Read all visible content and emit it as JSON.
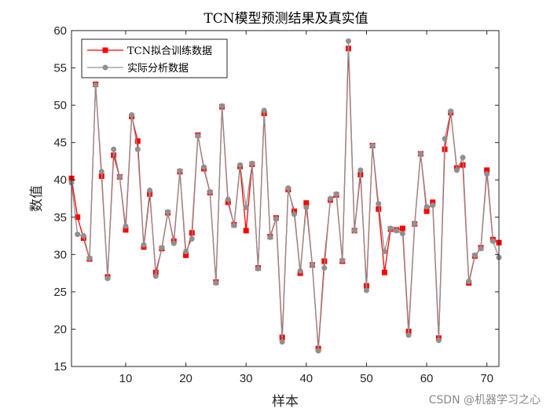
{
  "watermark": "CSDN @机器学习之心",
  "chart_data": {
    "type": "line",
    "title": "TCN模型预测结果及真实值",
    "xlabel": "样本",
    "ylabel": "数值",
    "xlim": [
      1,
      72
    ],
    "ylim": [
      15,
      60
    ],
    "xticks": [
      10,
      20,
      30,
      40,
      50,
      60,
      70
    ],
    "yticks": [
      15,
      20,
      25,
      30,
      35,
      40,
      45,
      50,
      55,
      60
    ],
    "grid": false,
    "legend_position": "top-left",
    "x": [
      1,
      2,
      3,
      4,
      5,
      6,
      7,
      8,
      9,
      10,
      11,
      12,
      13,
      14,
      15,
      16,
      17,
      18,
      19,
      20,
      21,
      22,
      23,
      24,
      25,
      26,
      27,
      28,
      29,
      30,
      31,
      32,
      33,
      34,
      35,
      36,
      37,
      38,
      39,
      40,
      41,
      42,
      43,
      44,
      45,
      46,
      47,
      48,
      49,
      50,
      51,
      52,
      53,
      54,
      55,
      56,
      57,
      58,
      59,
      60,
      61,
      62,
      63,
      64,
      65,
      66,
      67,
      68,
      69,
      70,
      71,
      72
    ],
    "series": [
      {
        "name": "TCN拟合训练数据",
        "color": "#ff0000",
        "marker": "square",
        "values": [
          40.2,
          35.0,
          32.2,
          29.4,
          52.8,
          40.5,
          27.0,
          43.3,
          40.4,
          33.3,
          48.5,
          45.2,
          31.0,
          38.1,
          27.6,
          30.8,
          35.6,
          31.8,
          41.1,
          29.9,
          32.9,
          46.0,
          41.5,
          38.3,
          26.3,
          49.8,
          37.0,
          34.0,
          41.8,
          33.2,
          42.1,
          28.2,
          48.9,
          32.4,
          34.9,
          18.9,
          38.7,
          35.8,
          27.5,
          36.9,
          28.6,
          17.4,
          29.1,
          37.3,
          38.0,
          29.1,
          57.6,
          33.2,
          40.7,
          25.8,
          44.6,
          36.1,
          27.6,
          33.4,
          33.3,
          33.5,
          19.7,
          34.1,
          43.5,
          35.8,
          37.0,
          18.8,
          44.1,
          49.0,
          41.6,
          42.0,
          26.2,
          29.8,
          30.9,
          41.3,
          32.0,
          31.6
        ]
      },
      {
        "name": "实际分析数据",
        "color": "#909090",
        "marker": "circle",
        "values": [
          39.6,
          32.7,
          32.5,
          29.5,
          52.7,
          41.1,
          26.8,
          44.1,
          40.4,
          33.8,
          48.7,
          44.1,
          31.3,
          38.6,
          27.1,
          30.9,
          35.7,
          31.5,
          41.2,
          30.4,
          32.1,
          45.9,
          41.7,
          38.4,
          26.2,
          49.9,
          37.4,
          33.9,
          42.0,
          36.3,
          42.2,
          28.1,
          49.3,
          32.3,
          34.8,
          18.3,
          38.9,
          35.4,
          27.8,
          36.3,
          28.6,
          17.1,
          28.2,
          37.5,
          38.1,
          29.2,
          58.6,
          33.2,
          41.3,
          25.2,
          44.6,
          36.8,
          30.4,
          33.5,
          33.2,
          32.8,
          19.2,
          34.1,
          43.5,
          36.4,
          36.6,
          18.5,
          45.5,
          49.2,
          41.3,
          43.0,
          26.4,
          29.9,
          30.8,
          40.8,
          31.8,
          29.6
        ]
      }
    ]
  }
}
